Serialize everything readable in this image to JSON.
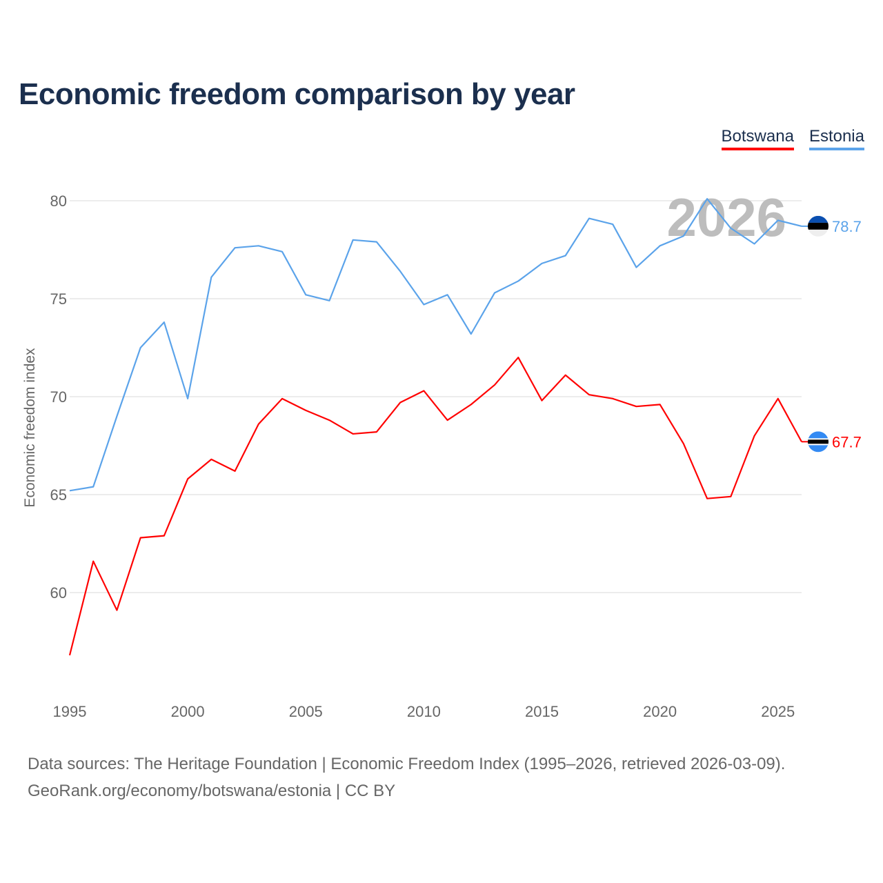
{
  "title": "Economic freedom comparison by year",
  "legend": [
    {
      "name": "Botswana",
      "color": "#ff0000"
    },
    {
      "name": "Estonia",
      "color": "#5ba3ea"
    }
  ],
  "watermark_year": "2026",
  "footer": {
    "line1": "Data sources: The Heritage Foundation | Economic Freedom Index (1995–2026, retrieved 2026-03-09).",
    "line2": "GeoRank.org/economy/botswana/estonia | CC BY"
  },
  "chart_data": {
    "type": "line",
    "title": "Economic freedom comparison by year",
    "xlabel": "",
    "ylabel": "Economic freedom index",
    "xlim": [
      1995,
      2026
    ],
    "ylim": [
      56.5,
      81
    ],
    "xticks": [
      "1995",
      "2000",
      "2005",
      "2010",
      "2015",
      "2020",
      "2025"
    ],
    "yticks": [
      "60",
      "65",
      "70",
      "75",
      "80"
    ],
    "grid": true,
    "legend_position": "top-right",
    "x": [
      1995,
      1996,
      1997,
      1998,
      1999,
      2000,
      2001,
      2002,
      2003,
      2004,
      2005,
      2006,
      2007,
      2008,
      2009,
      2010,
      2011,
      2012,
      2013,
      2014,
      2015,
      2016,
      2017,
      2018,
      2019,
      2020,
      2021,
      2022,
      2023,
      2024,
      2025,
      2026
    ],
    "series": [
      {
        "name": "Botswana",
        "color": "#ff0000",
        "end_label": "67.7",
        "values": [
          56.8,
          61.6,
          59.1,
          62.8,
          62.9,
          65.8,
          66.8,
          66.2,
          68.6,
          69.9,
          69.3,
          68.8,
          68.1,
          68.2,
          69.7,
          70.3,
          68.8,
          69.6,
          70.6,
          72.0,
          69.8,
          71.1,
          70.1,
          69.9,
          69.5,
          69.6,
          67.6,
          64.8,
          64.9,
          68.0,
          69.9,
          67.7
        ]
      },
      {
        "name": "Estonia",
        "color": "#5ba3ea",
        "end_label": "78.7",
        "values": [
          65.2,
          65.4,
          69.0,
          72.5,
          73.8,
          69.9,
          76.1,
          77.6,
          77.7,
          77.4,
          75.2,
          74.9,
          78.0,
          77.9,
          76.4,
          74.7,
          75.2,
          73.2,
          75.3,
          75.9,
          76.8,
          77.2,
          79.1,
          78.8,
          76.6,
          77.7,
          78.2,
          80.1,
          78.6,
          77.8,
          79.0,
          78.7
        ]
      }
    ]
  }
}
